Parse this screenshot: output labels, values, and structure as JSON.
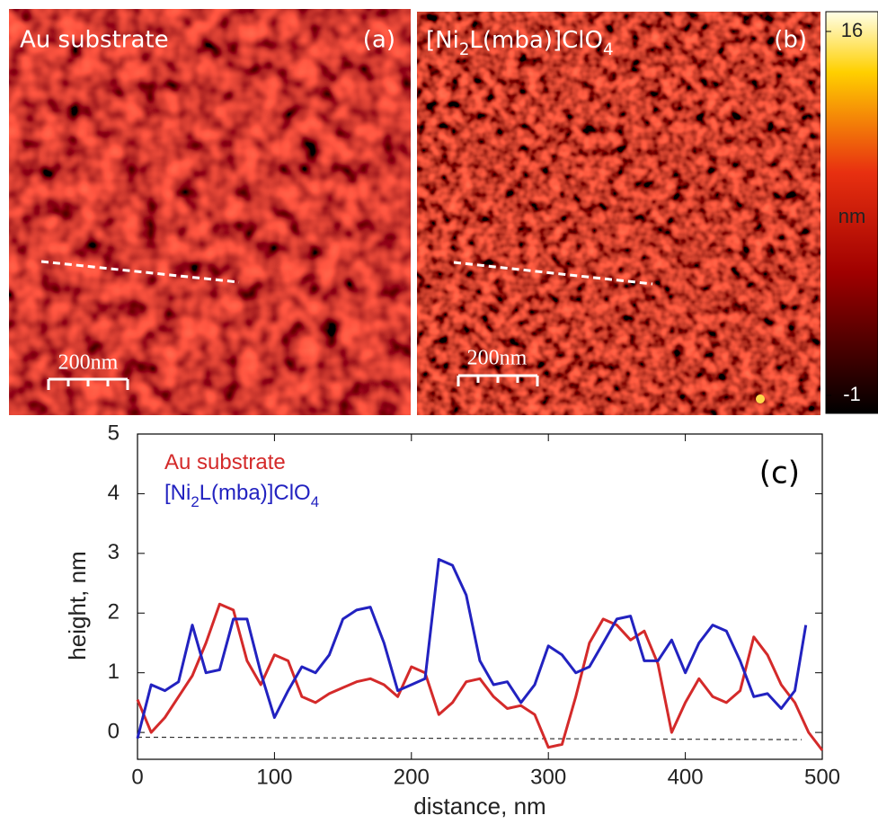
{
  "panels": [
    {
      "label": "Au substrate",
      "tag": "(a)",
      "scale_bar": "200nm"
    },
    {
      "label": "[Ni2L(mba)]ClO4",
      "tag": "(b)",
      "scale_bar": "200nm"
    }
  ],
  "colorbar": {
    "label": "nm",
    "lim": [
      -1,
      16
    ],
    "ticks": [
      16,
      -1
    ]
  },
  "chart_data": {
    "type": "line",
    "annotation": "(c)",
    "xlabel": "distance, nm",
    "ylabel": "height, nm",
    "xlim": [
      0,
      500
    ],
    "ylim": [
      -0.45,
      5
    ],
    "xticks": [
      0,
      100,
      200,
      300,
      400,
      500
    ],
    "yticks": [
      0,
      1,
      2,
      3,
      4,
      5
    ],
    "baseline": {
      "x": [
        0,
        485
      ],
      "values": [
        -0.08,
        -0.12
      ],
      "style": "dashed"
    },
    "series": [
      {
        "name": "Au substrate",
        "color": "#d42a2a",
        "x": [
          0,
          10,
          20,
          30,
          40,
          50,
          60,
          70,
          80,
          90,
          100,
          110,
          120,
          130,
          140,
          150,
          160,
          170,
          180,
          190,
          200,
          210,
          220,
          230,
          240,
          250,
          260,
          270,
          280,
          290,
          300,
          310,
          320,
          330,
          340,
          350,
          360,
          370,
          380,
          390,
          400,
          410,
          420,
          430,
          440,
          450,
          460,
          470,
          480,
          490,
          500
        ],
        "values": [
          0.55,
          0.0,
          0.25,
          0.6,
          0.95,
          1.5,
          2.15,
          2.05,
          1.2,
          0.8,
          1.3,
          1.2,
          0.6,
          0.5,
          0.65,
          0.75,
          0.85,
          0.9,
          0.8,
          0.6,
          1.1,
          1.0,
          0.3,
          0.5,
          0.85,
          0.9,
          0.6,
          0.4,
          0.45,
          0.3,
          -0.25,
          -0.2,
          0.6,
          1.5,
          1.9,
          1.8,
          1.55,
          1.7,
          1.15,
          0.0,
          0.5,
          0.9,
          0.6,
          0.5,
          0.7,
          1.6,
          1.3,
          0.8,
          0.5,
          0.0,
          -0.3
        ]
      },
      {
        "name": "[Ni2L(mba)]ClO4",
        "color": "#2222c0",
        "x": [
          0,
          10,
          20,
          30,
          40,
          50,
          60,
          70,
          80,
          90,
          100,
          110,
          120,
          130,
          140,
          150,
          160,
          170,
          180,
          190,
          200,
          210,
          220,
          230,
          240,
          250,
          260,
          270,
          280,
          290,
          300,
          310,
          320,
          330,
          340,
          350,
          360,
          370,
          380,
          390,
          400,
          410,
          420,
          430,
          440,
          450,
          460,
          470,
          480,
          488
        ],
        "values": [
          -0.1,
          0.8,
          0.7,
          0.85,
          1.8,
          1.0,
          1.05,
          1.9,
          1.9,
          1.0,
          0.25,
          0.7,
          1.1,
          1.0,
          1.3,
          1.9,
          2.05,
          2.1,
          1.5,
          0.7,
          0.8,
          0.9,
          2.9,
          2.8,
          2.3,
          1.2,
          0.8,
          0.85,
          0.5,
          0.8,
          1.45,
          1.3,
          1.0,
          1.1,
          1.5,
          1.9,
          1.95,
          1.2,
          1.2,
          1.55,
          1.0,
          1.5,
          1.8,
          1.7,
          1.2,
          0.6,
          0.65,
          0.4,
          0.7,
          1.8
        ]
      }
    ]
  }
}
